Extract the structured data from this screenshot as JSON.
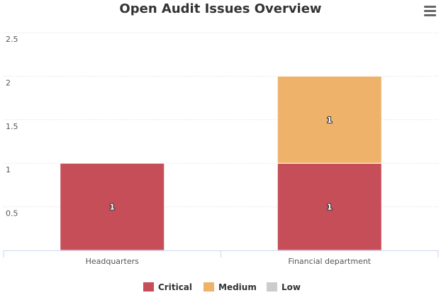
{
  "chart_data": {
    "type": "bar",
    "stacked": true,
    "title": "Open Audit Issues Overview",
    "categories": [
      "Headquarters",
      "Financial department"
    ],
    "series": [
      {
        "name": "Critical",
        "values": [
          1,
          1
        ],
        "color": "#c64e58"
      },
      {
        "name": "Medium",
        "values": [
          0,
          1
        ],
        "color": "#efb26b"
      },
      {
        "name": "Low",
        "values": [
          0,
          0
        ],
        "color": "#cccccc"
      }
    ],
    "y_ticks": [
      0.5,
      1,
      1.5,
      2,
      2.5
    ],
    "y_tick_labels": [
      "0.5",
      "1",
      "1.5",
      "2",
      "2.5"
    ],
    "ylim": [
      0,
      2.5
    ],
    "grid": true,
    "legend_position": "bottom"
  },
  "menu": {
    "icon": "hamburger-menu-icon"
  }
}
